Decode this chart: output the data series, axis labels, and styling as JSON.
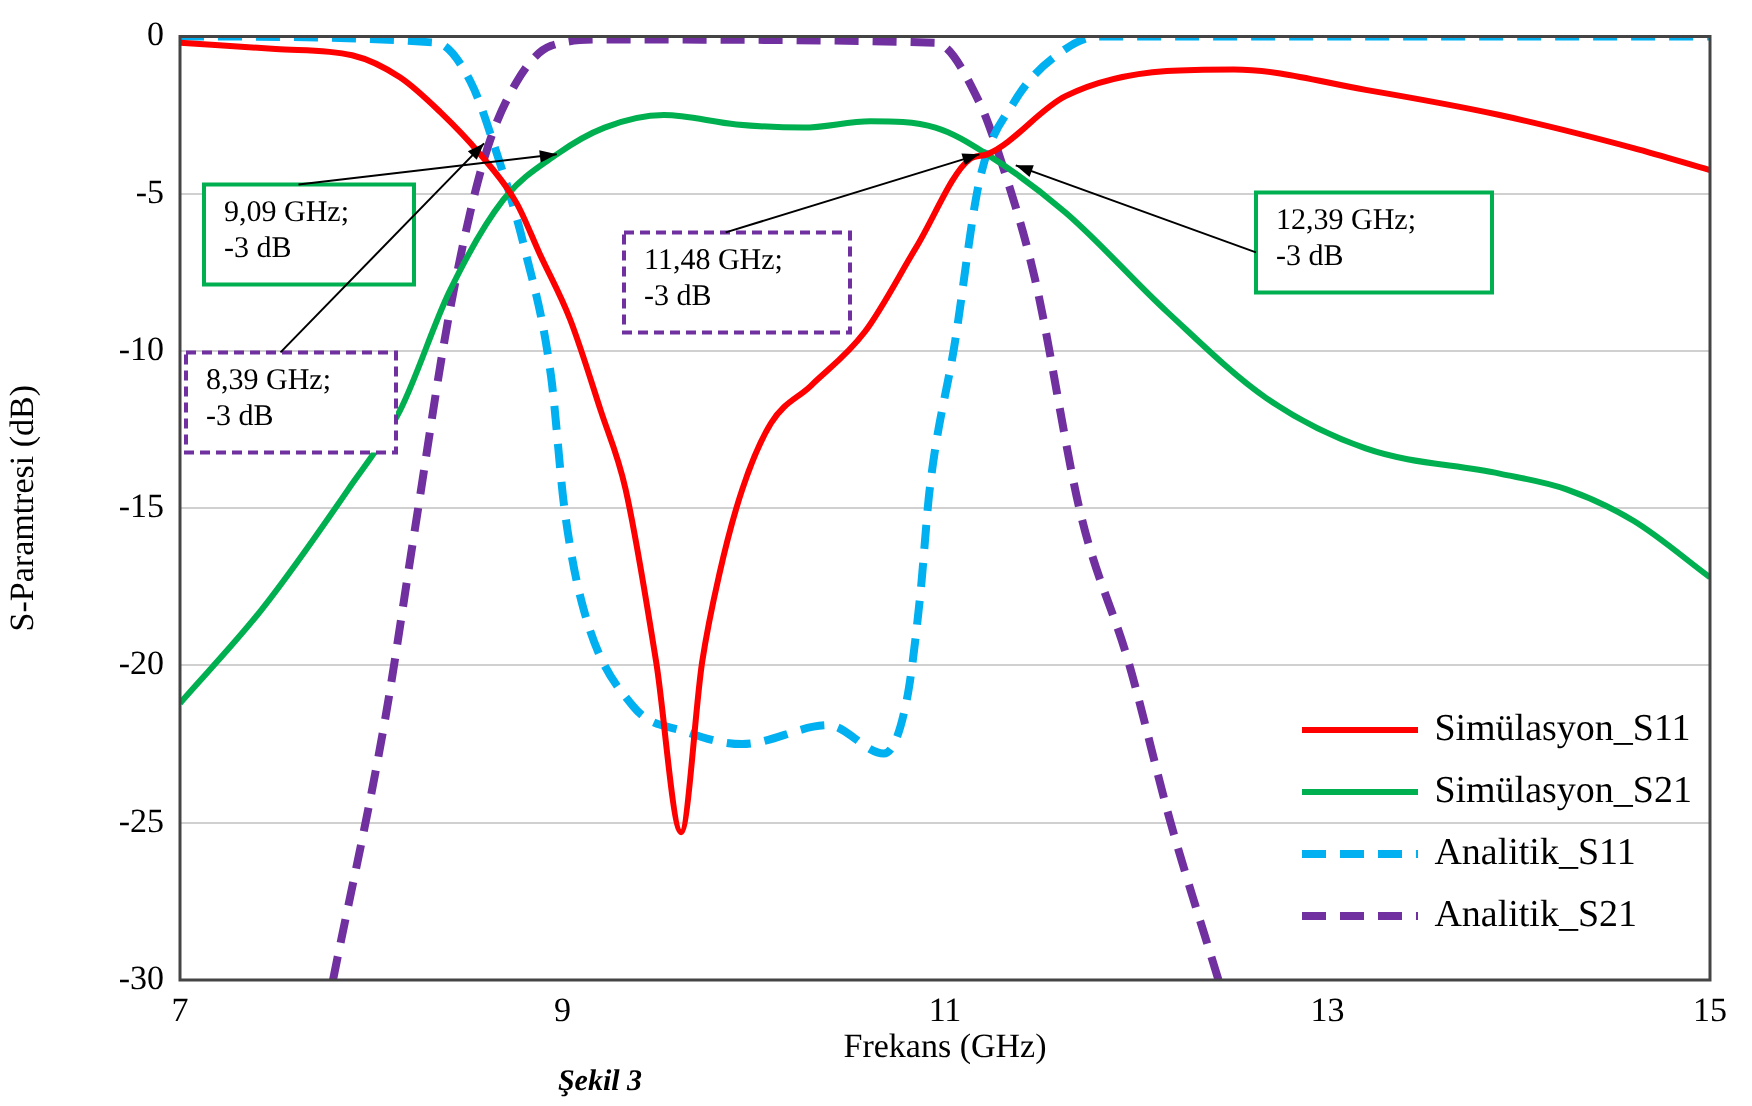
{
  "chart_data": {
    "type": "line",
    "xlabel": "Frekans (GHz)",
    "ylabel": "S-Paramtresi (dB)",
    "xlim": [
      7,
      15
    ],
    "xticks": [
      7,
      9,
      11,
      13,
      15
    ],
    "ylim": [
      -30,
      0
    ],
    "yticks": [
      0,
      -5,
      -10,
      -15,
      -20,
      -25,
      -30
    ],
    "grid": "y",
    "legend": "bottom right",
    "marker": "none",
    "series": [
      {
        "name": "Simülasyon_S11",
        "color": "#ff0000",
        "line_style": "solid",
        "x": [
          7,
          7.5,
          7.9,
          8.15,
          8.36,
          8.57,
          8.76,
          8.88,
          9.04,
          9.2,
          9.33,
          9.49,
          9.62,
          9.73,
          9.82,
          9.94,
          10.09,
          10.3,
          10.58,
          10.85,
          11.13,
          11.22,
          11.63,
          12.16,
          12.51,
          13.2,
          13.9,
          14.6,
          15
        ],
        "values": [
          -0.2,
          -0.4,
          -0.6,
          -1.3,
          -2.4,
          -3.75,
          -5.3,
          -6.9,
          -9,
          -11.9,
          -14.4,
          -19.9,
          -25.3,
          -19.9,
          -17.1,
          -14.4,
          -12.3,
          -11.1,
          -9.4,
          -6.7,
          -3.9,
          -3.75,
          -1.9,
          -1.1,
          -1.05,
          -1.7,
          -2.5,
          -3.55,
          -4.25
        ]
      },
      {
        "name": "Simülasyon_S21",
        "color": "#00b050",
        "line_style": "solid",
        "x": [
          7,
          7.43,
          7.88,
          8.15,
          8.41,
          8.69,
          8.97,
          9.22,
          9.53,
          9.91,
          10.26,
          10.61,
          10.95,
          11.22,
          11.63,
          12.16,
          12.68,
          13.2,
          13.9,
          14.25,
          14.6,
          15
        ],
        "values": [
          -21.2,
          -18.2,
          -14.4,
          -11.9,
          -8.1,
          -5.2,
          -3.75,
          -2.9,
          -2.5,
          -2.8,
          -2.9,
          -2.7,
          -2.9,
          -3.75,
          -5.6,
          -8.75,
          -11.5,
          -13.1,
          -13.9,
          -14.4,
          -15.4,
          -17.2
        ]
      },
      {
        "name": "Analitik_S11",
        "color": "#00b0f0",
        "line_style": "dashed",
        "x": [
          7,
          8.34,
          8.52,
          8.65,
          8.8,
          8.94,
          9.01,
          9.11,
          9.37,
          9.64,
          9.94,
          10.39,
          10.68,
          10.8,
          10.87,
          10.92,
          11.05,
          11.18,
          11.36,
          11.63,
          11.81,
          15
        ],
        "values": [
          0,
          -0.2,
          -1.45,
          -3.6,
          -6.7,
          -10.8,
          -15,
          -18.2,
          -21.3,
          -22.1,
          -22.5,
          -21.9,
          -22.8,
          -21.1,
          -17.8,
          -14.4,
          -9.8,
          -4.6,
          -2.1,
          -0.4,
          0,
          0
        ]
      },
      {
        "name": "Analitik_S21",
        "color": "#7030a0",
        "line_style": "dashed",
        "x": [
          7.8,
          8.07,
          8.23,
          8.41,
          8.59,
          8.76,
          8.94,
          9.22,
          10.95,
          11.18,
          11.29,
          11.47,
          11.71,
          11.96,
          12.18,
          12.43
        ],
        "values": [
          -30,
          -21.8,
          -15.6,
          -8.75,
          -3.9,
          -1.45,
          -0.3,
          -0.1,
          -0.2,
          -2.1,
          -3.9,
          -7.7,
          -15.2,
          -19.9,
          -25,
          -30
        ]
      }
    ],
    "annotations": [
      {
        "text": "9,09 GHz;\n-3 dB",
        "x": 8.97,
        "y": -3.75
      },
      {
        "text": "8,39 GHz;\n-3 dB",
        "x": 8.59,
        "y": -3.4
      },
      {
        "text": "11,48 GHz;\n-3 dB",
        "x": 11.18,
        "y": -3.75
      },
      {
        "text": "12,39 GHz;\n-3 dB",
        "x": 11.37,
        "y": -4.1
      },
      "Şekil 3"
    ]
  }
}
